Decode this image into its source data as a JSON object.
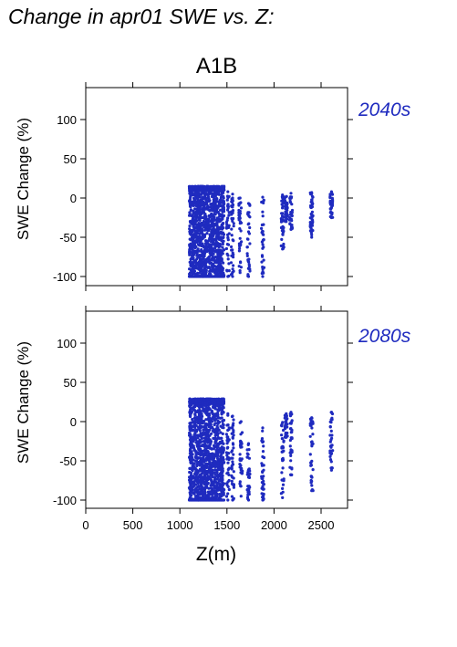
{
  "title": "Change in apr01 SWE vs. Z:",
  "colors": {
    "points": "#1f2bbf",
    "period_label": "#1f2bbf",
    "frame": "#000000"
  },
  "chart_data": [
    {
      "type": "scatter",
      "panel_title": "A1B",
      "period": "2040s",
      "xlabel": "Z(m)",
      "ylabel": "SWE Change (%)",
      "xlim": [
        0,
        2700
      ],
      "ylim": [
        -110,
        140
      ],
      "xticks": [
        "0",
        "500",
        "1000",
        "1500",
        "2000",
        "2500"
      ],
      "yticks": [
        "-100",
        "-50",
        "0",
        "50",
        "100"
      ],
      "show_x_tick_labels": false,
      "point_columns": [
        {
          "x_range": [
            1100,
            1470
          ],
          "y_range": [
            -100,
            15
          ],
          "dense": true
        },
        {
          "x": 1510,
          "y_range": [
            -100,
            8
          ]
        },
        {
          "x": 1560,
          "y_range": [
            -100,
            5
          ]
        },
        {
          "x": 1640,
          "y_range": [
            -95,
            0
          ]
        },
        {
          "x": 1730,
          "y_range": [
            -100,
            -7
          ]
        },
        {
          "x": 1880,
          "y_range": [
            -100,
            1
          ]
        },
        {
          "x": 2090,
          "y_range": [
            -65,
            4
          ]
        },
        {
          "x": 2130,
          "y_range": [
            -30,
            2
          ]
        },
        {
          "x": 2180,
          "y_range": [
            -40,
            6
          ]
        },
        {
          "x": 2400,
          "y_range": [
            -50,
            7
          ]
        },
        {
          "x": 2610,
          "y_range": [
            -25,
            8
          ]
        }
      ]
    },
    {
      "type": "scatter",
      "panel_title": "",
      "period": "2080s",
      "xlabel": "Z(m)",
      "ylabel": "SWE Change (%)",
      "xlim": [
        0,
        2700
      ],
      "ylim": [
        -110,
        140
      ],
      "xticks": [
        "0",
        "500",
        "1000",
        "1500",
        "2000",
        "2500"
      ],
      "yticks": [
        "-100",
        "-50",
        "0",
        "50",
        "100"
      ],
      "show_x_tick_labels": true,
      "point_columns": [
        {
          "x_range": [
            1100,
            1470
          ],
          "y_range": [
            -100,
            29
          ],
          "dense": true
        },
        {
          "x": 1510,
          "y_range": [
            -100,
            10
          ]
        },
        {
          "x": 1560,
          "y_range": [
            -100,
            7
          ]
        },
        {
          "x": 1650,
          "y_range": [
            -95,
            0
          ]
        },
        {
          "x": 1730,
          "y_range": [
            -100,
            -28
          ]
        },
        {
          "x": 1880,
          "y_range": [
            -100,
            -8
          ]
        },
        {
          "x": 2090,
          "y_range": [
            -97,
            -1
          ]
        },
        {
          "x": 2130,
          "y_range": [
            -20,
            10
          ]
        },
        {
          "x": 2180,
          "y_range": [
            -68,
            12
          ]
        },
        {
          "x": 2400,
          "y_range": [
            -88,
            5
          ]
        },
        {
          "x": 2610,
          "y_range": [
            -62,
            12
          ]
        }
      ]
    }
  ]
}
